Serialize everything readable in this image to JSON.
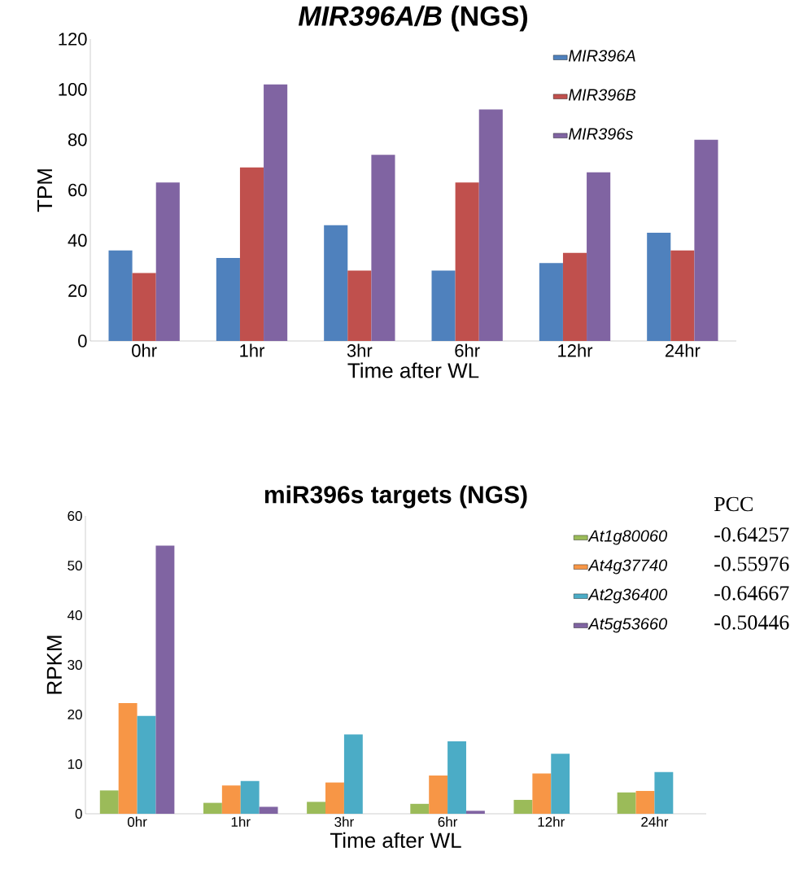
{
  "chart_data": [
    {
      "type": "bar",
      "title": "*MIR396A/B* (NGS)",
      "xlabel": "Time after WL",
      "ylabel": "TPM",
      "categories": [
        "0hr",
        "1hr",
        "3hr",
        "6hr",
        "12hr",
        "24hr"
      ],
      "series": [
        {
          "name": "MIR396A",
          "color": "#4f81bd",
          "values": [
            36,
            33,
            46,
            28,
            31,
            43
          ]
        },
        {
          "name": "MIR396B",
          "color": "#c0504d",
          "values": [
            27,
            69,
            28,
            63,
            35,
            36
          ]
        },
        {
          "name": "MIR396s",
          "color": "#8064a2",
          "values": [
            63,
            102,
            74,
            92,
            67,
            80
          ]
        }
      ],
      "ylim": [
        0,
        120
      ],
      "yticks": [
        0,
        20,
        40,
        60,
        80,
        100,
        120
      ],
      "legend": "top right"
    },
    {
      "type": "bar",
      "title": "miR396s targets (NGS)",
      "xlabel": "Time after WL",
      "ylabel": "RPKM",
      "categories": [
        "0hr",
        "1hr",
        "3hr",
        "6hr",
        "12hr",
        "24hr"
      ],
      "series": [
        {
          "name": "At1g80060",
          "color": "#9bbb59",
          "values": [
            4.7,
            2.2,
            2.4,
            2.0,
            2.8,
            4.3
          ]
        },
        {
          "name": "At4g37740",
          "color": "#f79646",
          "values": [
            22.3,
            5.7,
            6.3,
            7.7,
            8.1,
            4.6
          ]
        },
        {
          "name": "At2g36400",
          "color": "#4bacc6",
          "values": [
            19.7,
            6.6,
            16.0,
            14.6,
            12.1,
            8.4
          ]
        },
        {
          "name": "At5g53660",
          "color": "#8064a2",
          "values": [
            54,
            1.4,
            0,
            0.6,
            0,
            0
          ]
        }
      ],
      "ylim": [
        0,
        60
      ],
      "yticks": [
        0,
        10,
        20,
        30,
        40,
        50,
        60
      ],
      "legend": "top right",
      "annotations": [
        "PCC",
        "-0.64257",
        "-0.55976",
        "-0.64667",
        "-0.50446"
      ]
    }
  ]
}
